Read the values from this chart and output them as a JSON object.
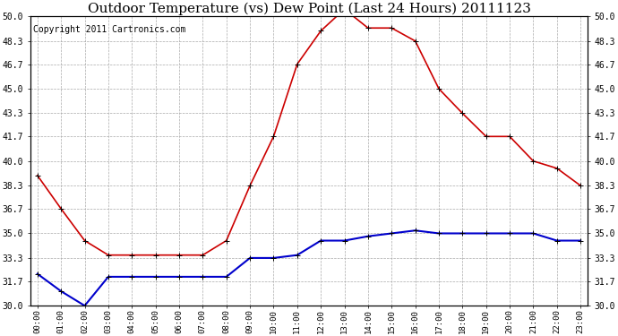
{
  "title": "Outdoor Temperature (vs) Dew Point (Last 24 Hours) 20111123",
  "copyright": "Copyright 2011 Cartronics.com",
  "hours": [
    "00:00",
    "01:00",
    "02:00",
    "03:00",
    "04:00",
    "05:00",
    "06:00",
    "07:00",
    "08:00",
    "09:00",
    "10:00",
    "11:00",
    "12:00",
    "13:00",
    "14:00",
    "15:00",
    "16:00",
    "17:00",
    "18:00",
    "19:00",
    "20:00",
    "21:00",
    "22:00",
    "23:00"
  ],
  "temp": [
    39.0,
    36.7,
    34.5,
    33.5,
    33.5,
    33.5,
    33.5,
    33.5,
    34.5,
    38.3,
    41.7,
    46.7,
    49.0,
    50.5,
    49.2,
    49.2,
    48.3,
    45.0,
    43.3,
    41.7,
    41.7,
    40.0,
    39.5,
    38.3
  ],
  "dew": [
    32.2,
    31.0,
    30.0,
    32.0,
    32.0,
    32.0,
    32.0,
    32.0,
    32.0,
    33.3,
    33.3,
    33.5,
    34.5,
    34.5,
    34.8,
    35.0,
    35.2,
    35.0,
    35.0,
    35.0,
    35.0,
    35.0,
    34.5,
    34.5
  ],
  "temp_color": "#cc0000",
  "dew_color": "#0000cc",
  "bg_color": "#ffffff",
  "grid_color": "#aaaaaa",
  "ylim_min": 30.0,
  "ylim_max": 50.0,
  "yticks": [
    30.0,
    31.7,
    33.3,
    35.0,
    36.7,
    38.3,
    40.0,
    41.7,
    43.3,
    45.0,
    46.7,
    48.3,
    50.0
  ],
  "title_fontsize": 11,
  "copyright_fontsize": 7,
  "figwidth": 6.9,
  "figheight": 3.75,
  "dpi": 100
}
